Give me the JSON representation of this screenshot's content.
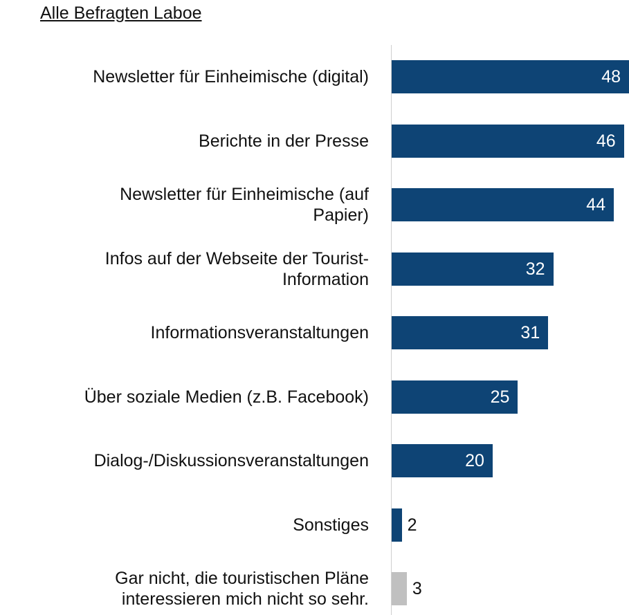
{
  "chart_data": {
    "type": "barh",
    "title": "Alle Befragten Laboe",
    "categories": [
      "Newsletter für Einheimische (digital)",
      "Berichte in der Presse",
      "Newsletter für Einheimische (auf\nPapier)",
      "Infos auf der Webseite der Tourist-\nInformation",
      "Informationsveranstaltungen",
      "Über soziale Medien (z.B. Facebook)",
      "Dialog-/Diskussionsveranstaltungen",
      "Sonstiges",
      "Gar nicht, die touristischen Pläne\ninteressieren mich nicht so sehr."
    ],
    "values": [
      48,
      46,
      44,
      32,
      31,
      25,
      20,
      2,
      3
    ],
    "colors": [
      "#0e4475",
      "#0e4475",
      "#0e4475",
      "#0e4475",
      "#0e4475",
      "#0e4475",
      "#0e4475",
      "#0e4475",
      "#c0c0c0"
    ],
    "xlim": [
      0,
      47
    ]
  }
}
